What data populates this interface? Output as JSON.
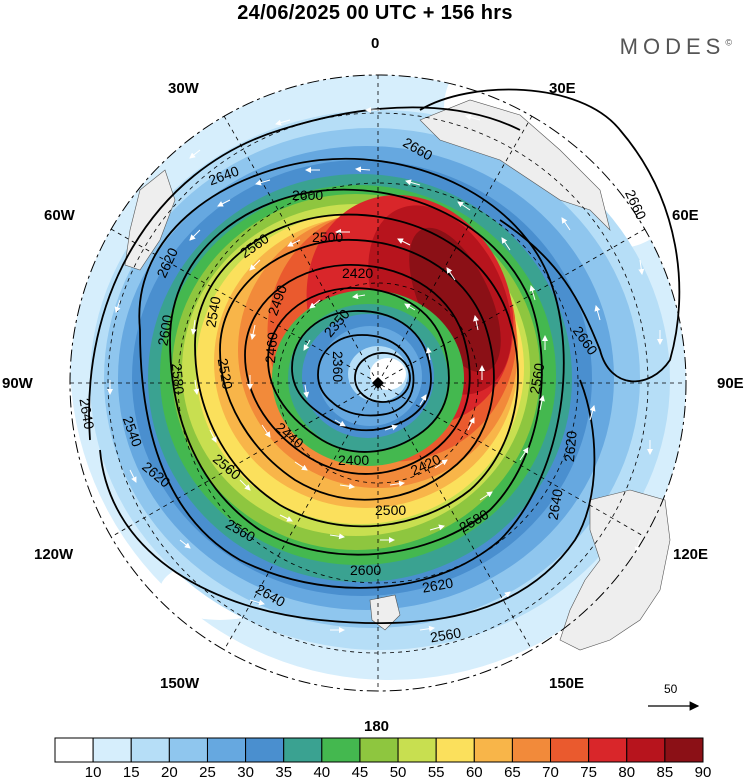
{
  "header": {
    "title": "24/06/2025  00 UTC  + 156 hrs",
    "brand": "MODES",
    "brand_mark": "©"
  },
  "map": {
    "projection": "polar-stereographic-south",
    "lon_labels": {
      "top": "0",
      "top_left": "30W",
      "top_right": "30E",
      "upper_left": "60W",
      "upper_right": "60E",
      "left": "90W",
      "right": "90E",
      "lower_left": "120W",
      "lower_right": "120E",
      "bottom_left": "150W",
      "bottom_right": "150E",
      "bottom": "180"
    },
    "contour_labels": [
      "2660",
      "2660",
      "2640",
      "2600",
      "2620",
      "2560",
      "2500",
      "2420",
      "2600",
      "2540",
      "2490",
      "2460",
      "2350",
      "2360",
      "2580",
      "2520",
      "2560",
      "2640",
      "2540",
      "2440",
      "2400",
      "2420",
      "2620",
      "2560",
      "2500",
      "2580",
      "2600",
      "2640",
      "2620",
      "2640",
      "2660",
      "2560",
      "2620",
      "2560"
    ],
    "reference_vector": "50",
    "colors": {
      "land": "#eeeeee",
      "contour": "#000000",
      "wind_arrow": "#ffffff"
    }
  },
  "colorbar": {
    "ticks": [
      "10",
      "15",
      "20",
      "25",
      "30",
      "35",
      "40",
      "45",
      "50",
      "55",
      "60",
      "65",
      "70",
      "75",
      "80",
      "85",
      "90"
    ],
    "colors": [
      "#ffffff",
      "#d6eefc",
      "#b6def7",
      "#8fc6ee",
      "#66a8e0",
      "#4a8fcf",
      "#3aa291",
      "#44b84f",
      "#8ec63f",
      "#c8df50",
      "#fbe05c",
      "#f8b549",
      "#f28a3a",
      "#ea5a2e",
      "#d9262a",
      "#b7141d",
      "#8b1016"
    ]
  }
}
